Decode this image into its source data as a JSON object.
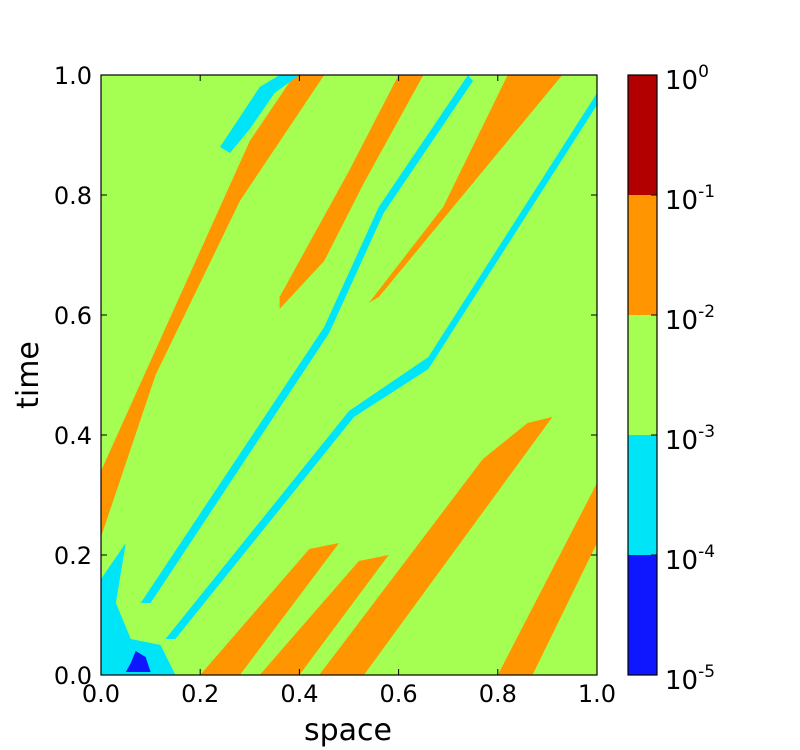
{
  "chart_data": {
    "type": "heatmap",
    "title": "",
    "xlabel": "space",
    "ylabel": "time",
    "xlim": [
      0.0,
      1.0
    ],
    "ylim": [
      0.0,
      1.0
    ],
    "x_ticks": [
      0.0,
      0.2,
      0.4,
      0.6,
      0.8,
      1.0
    ],
    "y_ticks": [
      0.0,
      0.2,
      0.4,
      0.6,
      0.8,
      1.0
    ],
    "x_tick_labels": [
      "0.0",
      "0.2",
      "0.4",
      "0.6",
      "0.8",
      "1.0"
    ],
    "y_tick_labels": [
      "0.0",
      "0.2",
      "0.4",
      "0.6",
      "0.8",
      "1.0"
    ],
    "grid": false,
    "background_level_color": "#a4ff52",
    "colorbar": {
      "scale": "log",
      "levels": [
        {
          "range": [
            1e-05,
            0.0001
          ],
          "color": "#0e17ff"
        },
        {
          "range": [
            0.0001,
            0.001
          ],
          "color": "#00e4f8"
        },
        {
          "range": [
            0.001,
            0.01
          ],
          "color": "#a4ff52"
        },
        {
          "range": [
            0.01,
            0.1
          ],
          "color": "#ff9500"
        },
        {
          "range": [
            0.1,
            1.0
          ],
          "color": "#b20000"
        }
      ],
      "tick_labels": [
        {
          "base": "10",
          "exp": "0"
        },
        {
          "base": "10",
          "exp": "-1"
        },
        {
          "base": "10",
          "exp": "-2"
        },
        {
          "base": "10",
          "exp": "-3"
        },
        {
          "base": "10",
          "exp": "-4"
        },
        {
          "base": "10",
          "exp": "-5"
        }
      ]
    },
    "regions": [
      {
        "name": "orange-band-upper-left",
        "color": "#ff9500",
        "points": [
          [
            0.0,
            0.23
          ],
          [
            0.0,
            0.34
          ],
          [
            0.3,
            0.89
          ],
          [
            0.39,
            1.0
          ],
          [
            0.45,
            1.0
          ],
          [
            0.28,
            0.79
          ],
          [
            0.11,
            0.5
          ]
        ]
      },
      {
        "name": "orange-band-mid-top",
        "color": "#ff9500",
        "points": [
          [
            0.36,
            0.63
          ],
          [
            0.5,
            0.84
          ],
          [
            0.6,
            1.0
          ],
          [
            0.65,
            1.0
          ],
          [
            0.53,
            0.82
          ],
          [
            0.45,
            0.69
          ],
          [
            0.36,
            0.61
          ]
        ]
      },
      {
        "name": "orange-band-right-top",
        "color": "#ff9500",
        "points": [
          [
            0.54,
            0.62
          ],
          [
            0.69,
            0.78
          ],
          [
            0.82,
            1.0
          ],
          [
            0.93,
            1.0
          ],
          [
            0.8,
            0.87
          ],
          [
            0.56,
            0.63
          ]
        ]
      },
      {
        "name": "orange-band-bottom-1",
        "color": "#ff9500",
        "points": [
          [
            0.2,
            0.0
          ],
          [
            0.42,
            0.21
          ],
          [
            0.48,
            0.22
          ],
          [
            0.28,
            0.0
          ]
        ]
      },
      {
        "name": "orange-band-bottom-2",
        "color": "#ff9500",
        "points": [
          [
            0.32,
            0.0
          ],
          [
            0.52,
            0.19
          ],
          [
            0.58,
            0.2
          ],
          [
            0.4,
            0.0
          ]
        ]
      },
      {
        "name": "orange-band-bottom-3",
        "color": "#ff9500",
        "points": [
          [
            0.44,
            0.0
          ],
          [
            0.77,
            0.36
          ],
          [
            0.86,
            0.42
          ],
          [
            0.91,
            0.43
          ],
          [
            0.53,
            0.0
          ]
        ]
      },
      {
        "name": "orange-band-bottom-right",
        "color": "#ff9500",
        "points": [
          [
            0.8,
            0.0
          ],
          [
            1.0,
            0.32
          ],
          [
            1.0,
            0.22
          ],
          [
            0.87,
            0.0
          ]
        ]
      },
      {
        "name": "cyan-streak-a",
        "color": "#00e4f8",
        "points": [
          [
            0.08,
            0.12
          ],
          [
            0.45,
            0.58
          ],
          [
            0.56,
            0.78
          ],
          [
            0.74,
            1.0
          ],
          [
            0.75,
            0.99
          ],
          [
            0.57,
            0.77
          ],
          [
            0.46,
            0.57
          ],
          [
            0.1,
            0.12
          ]
        ]
      },
      {
        "name": "cyan-streak-b",
        "color": "#00e4f8",
        "points": [
          [
            0.13,
            0.06
          ],
          [
            0.5,
            0.44
          ],
          [
            0.66,
            0.53
          ],
          [
            1.0,
            0.97
          ],
          [
            1.0,
            0.95
          ],
          [
            0.66,
            0.51
          ],
          [
            0.51,
            0.43
          ],
          [
            0.15,
            0.06
          ]
        ]
      },
      {
        "name": "cyan-bottom-left",
        "color": "#00e4f8",
        "points": [
          [
            0.0,
            0.0
          ],
          [
            0.0,
            0.16
          ],
          [
            0.05,
            0.22
          ],
          [
            0.03,
            0.12
          ],
          [
            0.06,
            0.06
          ],
          [
            0.12,
            0.05
          ],
          [
            0.15,
            0.0
          ]
        ]
      },
      {
        "name": "cyan-top-left",
        "color": "#00e4f8",
        "points": [
          [
            0.36,
            1.0
          ],
          [
            0.4,
            1.0
          ],
          [
            0.35,
            0.97
          ],
          [
            0.3,
            0.91
          ],
          [
            0.26,
            0.87
          ],
          [
            0.24,
            0.88
          ],
          [
            0.28,
            0.93
          ],
          [
            0.32,
            0.98
          ]
        ]
      },
      {
        "name": "blue-spot",
        "color": "#0e17ff",
        "points": [
          [
            0.05,
            0.005
          ],
          [
            0.1,
            0.005
          ],
          [
            0.09,
            0.03
          ],
          [
            0.07,
            0.04
          ],
          [
            0.06,
            0.02
          ]
        ]
      }
    ]
  }
}
